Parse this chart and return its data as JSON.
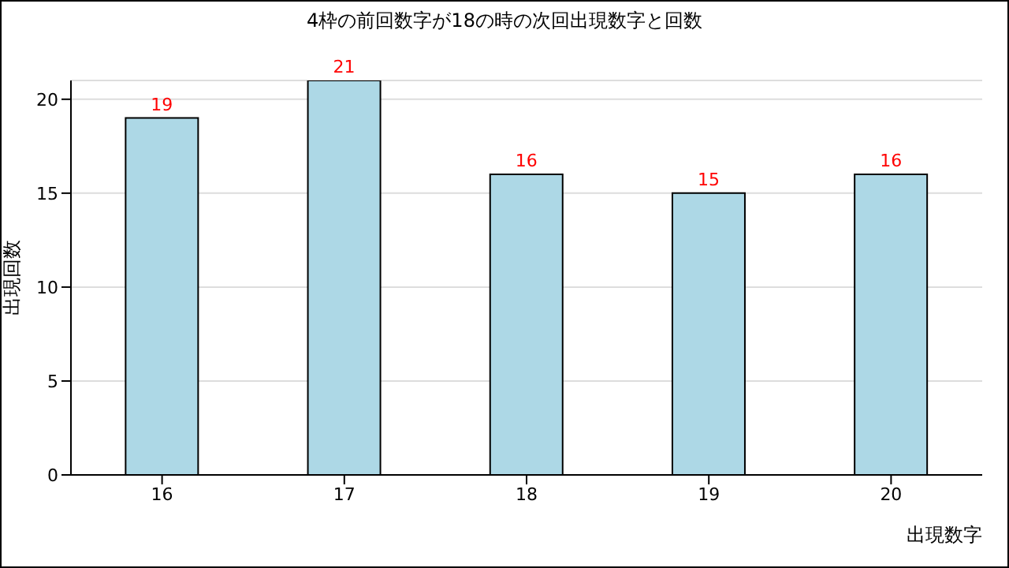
{
  "chart_data": {
    "type": "bar",
    "title": "4枠の前回数字が18の時の次回出現数字と回数",
    "xlabel": "出現数字",
    "ylabel": "出現回数",
    "categories": [
      "16",
      "17",
      "18",
      "19",
      "20"
    ],
    "values": [
      19,
      21,
      16,
      15,
      16
    ],
    "color": "#add8e6",
    "ylim": [
      0,
      21
    ],
    "yticks": [
      0,
      5,
      10,
      15,
      20
    ],
    "grid": "y",
    "data_labels": true
  }
}
